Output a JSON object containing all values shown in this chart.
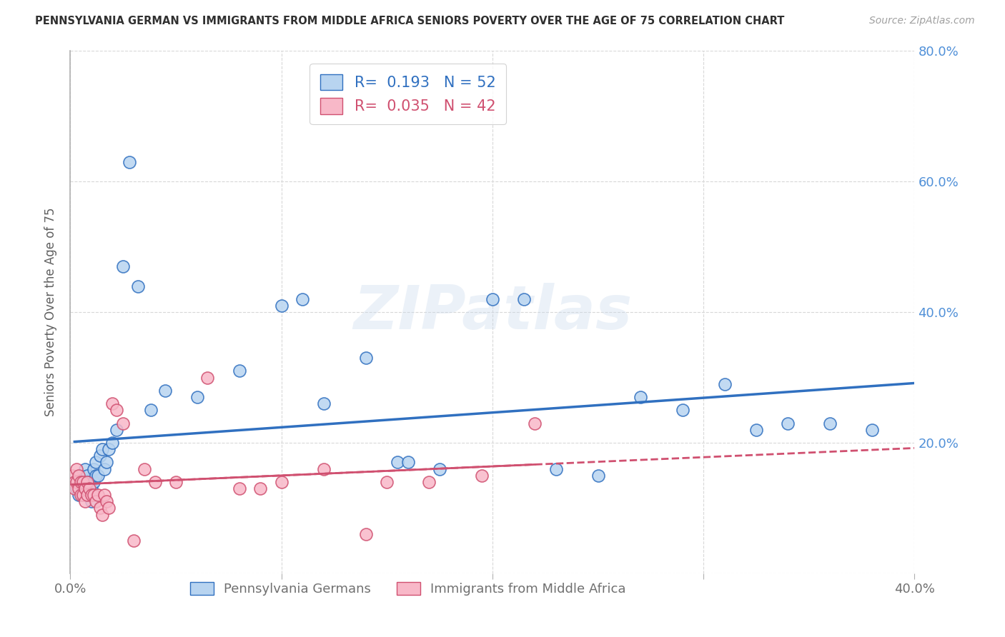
{
  "title": "PENNSYLVANIA GERMAN VS IMMIGRANTS FROM MIDDLE AFRICA SENIORS POVERTY OVER THE AGE OF 75 CORRELATION CHART",
  "source": "Source: ZipAtlas.com",
  "ylabel": "Seniors Poverty Over the Age of 75",
  "xlim": [
    0.0,
    0.4
  ],
  "ylim": [
    0.0,
    0.8
  ],
  "series1_label": "Pennsylvania Germans",
  "series1_R": "0.193",
  "series1_N": "52",
  "series1_color": "#b8d4f0",
  "series1_edge_color": "#3070c0",
  "series2_label": "Immigrants from Middle Africa",
  "series2_R": "0.035",
  "series2_N": "42",
  "series2_color": "#f8b8c8",
  "series2_edge_color": "#d05070",
  "watermark": "ZIPatlas",
  "background_color": "#ffffff",
  "title_color": "#303030",
  "axis_color": "#b0b0b0",
  "grid_color": "#d8d8d8",
  "right_label_color": "#5090d8",
  "series1_x": [
    0.002,
    0.003,
    0.004,
    0.005,
    0.005,
    0.006,
    0.006,
    0.007,
    0.007,
    0.008,
    0.008,
    0.009,
    0.009,
    0.01,
    0.01,
    0.011,
    0.011,
    0.012,
    0.012,
    0.013,
    0.014,
    0.015,
    0.016,
    0.017,
    0.018,
    0.02,
    0.022,
    0.025,
    0.028,
    0.032,
    0.038,
    0.045,
    0.06,
    0.08,
    0.1,
    0.11,
    0.12,
    0.14,
    0.155,
    0.16,
    0.175,
    0.2,
    0.215,
    0.23,
    0.25,
    0.27,
    0.29,
    0.31,
    0.325,
    0.34,
    0.36,
    0.38
  ],
  "series1_y": [
    0.14,
    0.13,
    0.12,
    0.15,
    0.14,
    0.13,
    0.12,
    0.16,
    0.14,
    0.15,
    0.13,
    0.14,
    0.12,
    0.13,
    0.11,
    0.16,
    0.14,
    0.17,
    0.15,
    0.15,
    0.18,
    0.19,
    0.16,
    0.17,
    0.19,
    0.2,
    0.22,
    0.47,
    0.63,
    0.44,
    0.25,
    0.28,
    0.27,
    0.31,
    0.41,
    0.42,
    0.26,
    0.33,
    0.17,
    0.17,
    0.16,
    0.42,
    0.42,
    0.16,
    0.15,
    0.27,
    0.25,
    0.29,
    0.22,
    0.23,
    0.23,
    0.22
  ],
  "series2_x": [
    0.001,
    0.002,
    0.002,
    0.003,
    0.003,
    0.004,
    0.004,
    0.005,
    0.005,
    0.006,
    0.006,
    0.007,
    0.007,
    0.008,
    0.008,
    0.009,
    0.01,
    0.011,
    0.012,
    0.013,
    0.014,
    0.015,
    0.016,
    0.017,
    0.018,
    0.02,
    0.022,
    0.025,
    0.03,
    0.035,
    0.04,
    0.05,
    0.065,
    0.08,
    0.09,
    0.1,
    0.12,
    0.14,
    0.15,
    0.17,
    0.195,
    0.22
  ],
  "series2_y": [
    0.15,
    0.14,
    0.13,
    0.16,
    0.14,
    0.15,
    0.13,
    0.14,
    0.12,
    0.14,
    0.12,
    0.13,
    0.11,
    0.14,
    0.12,
    0.13,
    0.12,
    0.12,
    0.11,
    0.12,
    0.1,
    0.09,
    0.12,
    0.11,
    0.1,
    0.26,
    0.25,
    0.23,
    0.05,
    0.16,
    0.14,
    0.14,
    0.3,
    0.13,
    0.13,
    0.14,
    0.16,
    0.06,
    0.14,
    0.14,
    0.15,
    0.23
  ]
}
